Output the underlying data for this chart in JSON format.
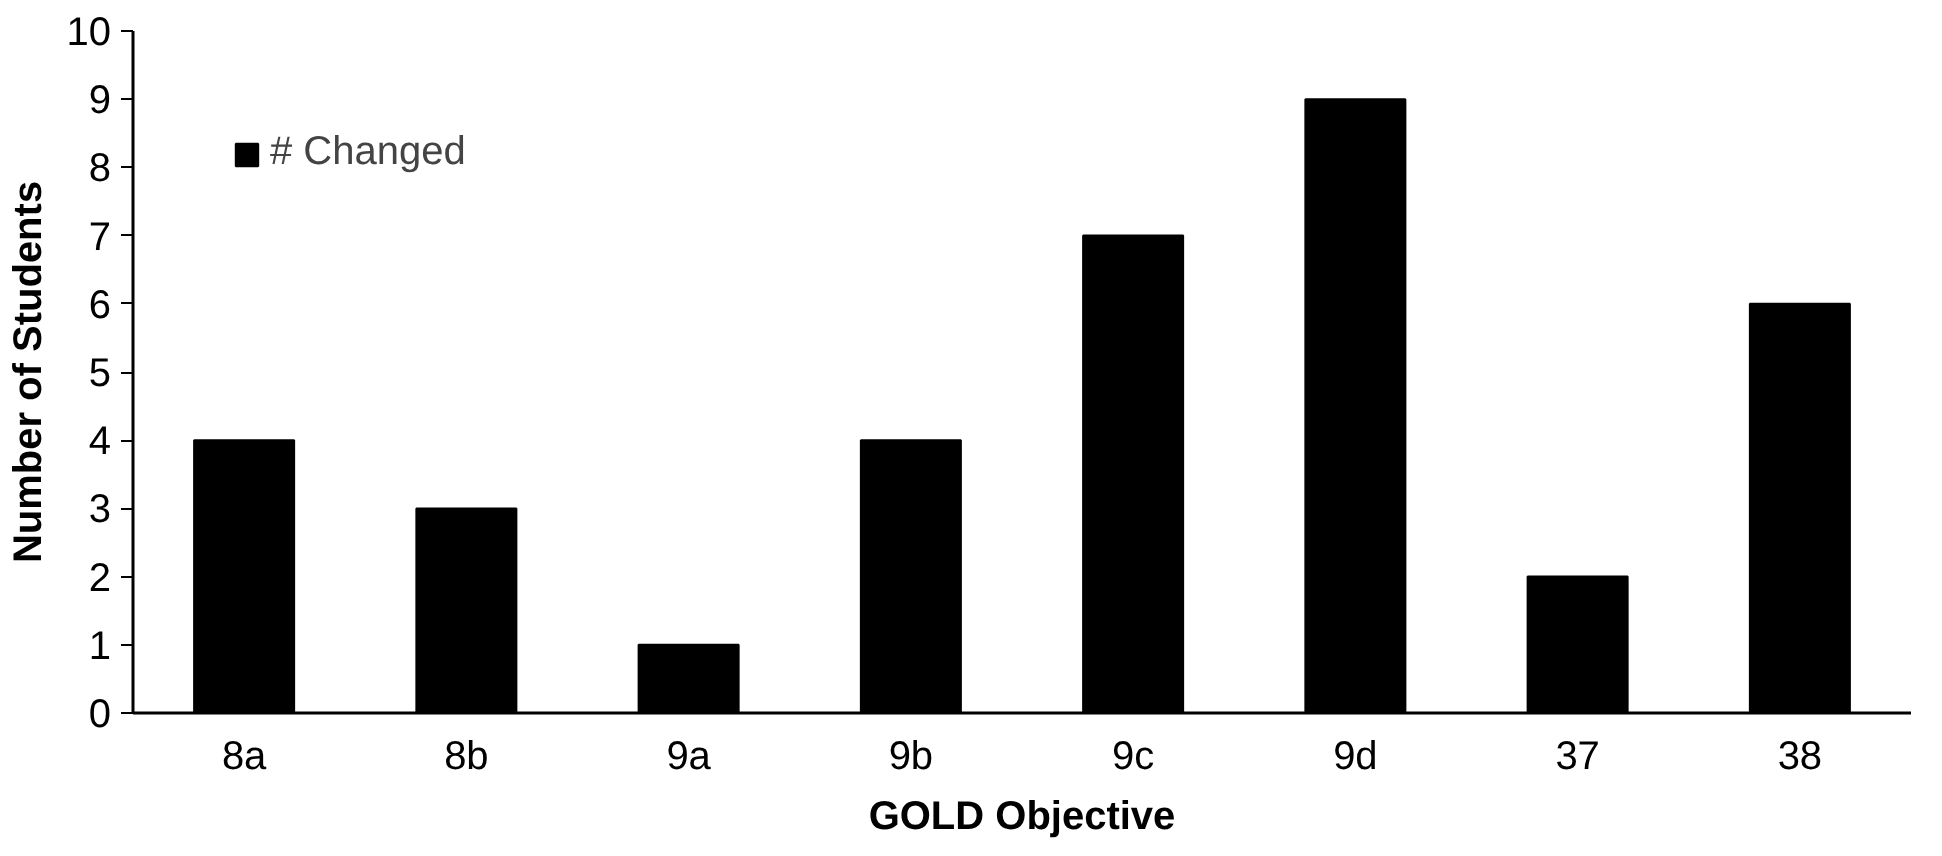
{
  "chart_data": {
    "type": "bar",
    "xlabel": "GOLD Objective",
    "ylabel": "Number of Students",
    "categories": [
      "8a",
      "8b",
      "9a",
      "9b",
      "9c",
      "9d",
      "37",
      "38"
    ],
    "series": [
      {
        "name": "# Changed",
        "color": "#000000",
        "values": [
          4,
          3,
          1,
          4,
          7,
          9,
          2,
          6
        ]
      }
    ],
    "ylim": [
      0,
      10
    ],
    "yticks": [
      0,
      1,
      2,
      3,
      4,
      5,
      6,
      7,
      8,
      9,
      10
    ],
    "grid": false,
    "legend": "top left"
  }
}
